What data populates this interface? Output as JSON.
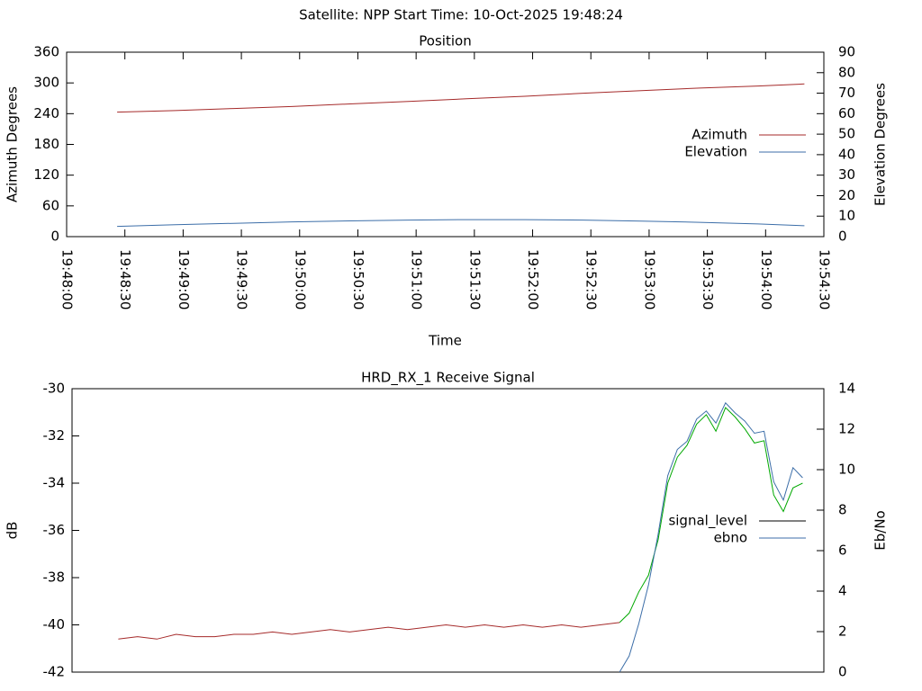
{
  "title": "Satellite: NPP    Start Time: 10-Oct-2025 19:48:24",
  "chart_data": [
    {
      "type": "line",
      "title": "Position",
      "xlabel": "Time",
      "ylabel": "Azimuth Degrees",
      "y2label": "Elevation Degrees",
      "xlim": [
        "19:48:00",
        "19:54:30"
      ],
      "xticks": [
        "19:48:00",
        "19:48:30",
        "19:49:00",
        "19:49:30",
        "19:50:00",
        "19:50:30",
        "19:51:00",
        "19:51:30",
        "19:52:00",
        "19:52:30",
        "19:53:00",
        "19:53:30",
        "19:54:00",
        "19:54:30"
      ],
      "ylim": [
        0,
        360
      ],
      "yticks": [
        0,
        60,
        120,
        180,
        240,
        300,
        360
      ],
      "y2lim": [
        0,
        90
      ],
      "y2ticks": [
        0,
        10,
        20,
        30,
        40,
        50,
        60,
        70,
        80,
        90
      ],
      "series": [
        {
          "name": "Azimuth",
          "color": "#a52a2a",
          "x": [
            "19:48:26",
            "19:48:56",
            "19:49:26",
            "19:49:56",
            "19:50:26",
            "19:50:56",
            "19:51:26",
            "19:51:56",
            "19:52:26",
            "19:52:56",
            "19:53:26",
            "19:53:56",
            "19:54:20"
          ],
          "values": [
            243,
            246,
            250,
            254,
            259,
            264,
            269,
            274,
            280,
            285,
            290,
            294,
            298
          ]
        },
        {
          "name": "Elevation",
          "color": "#3c6ea8",
          "axis": "y2",
          "x": [
            "19:48:26",
            "19:48:56",
            "19:49:26",
            "19:49:56",
            "19:50:26",
            "19:50:56",
            "19:51:26",
            "19:51:56",
            "19:52:26",
            "19:52:56",
            "19:53:26",
            "19:53:56",
            "19:54:20"
          ],
          "values": [
            5,
            5.8,
            6.5,
            7.2,
            7.7,
            8.1,
            8.3,
            8.3,
            8.1,
            7.6,
            7.0,
            6.2,
            5.3
          ]
        }
      ]
    },
    {
      "type": "line",
      "title": "HRD_RX_1 Receive Signal",
      "ylabel": "dB",
      "y2label": "Eb/No",
      "xlim": [
        "19:48:00",
        "19:54:30"
      ],
      "ylim": [
        -42,
        -30
      ],
      "yticks": [
        -42,
        -40,
        -38,
        -36,
        -34,
        -32,
        -30
      ],
      "y2lim": [
        0,
        14
      ],
      "y2ticks": [
        0,
        2,
        4,
        6,
        8,
        10,
        12,
        14
      ],
      "series": [
        {
          "name": "signal_level",
          "color": "#a52a2a",
          "legend_color": "#000000",
          "color_from": {
            "x": "19:52:44",
            "color": "#00a800"
          },
          "x": [
            "19:48:24",
            "19:48:34",
            "19:48:44",
            "19:48:54",
            "19:49:04",
            "19:49:14",
            "19:49:24",
            "19:49:34",
            "19:49:44",
            "19:49:54",
            "19:50:04",
            "19:50:14",
            "19:50:24",
            "19:50:34",
            "19:50:44",
            "19:50:54",
            "19:51:04",
            "19:51:14",
            "19:51:24",
            "19:51:34",
            "19:51:44",
            "19:51:54",
            "19:52:04",
            "19:52:14",
            "19:52:24",
            "19:52:34",
            "19:52:44",
            "19:52:49",
            "19:52:54",
            "19:52:59",
            "19:53:04",
            "19:53:09",
            "19:53:14",
            "19:53:19",
            "19:53:24",
            "19:53:29",
            "19:53:34",
            "19:53:39",
            "19:53:44",
            "19:53:49",
            "19:53:54",
            "19:53:59",
            "19:54:04",
            "19:54:09",
            "19:54:14",
            "19:54:19"
          ],
          "values": [
            -40.6,
            -40.5,
            -40.6,
            -40.4,
            -40.5,
            -40.5,
            -40.4,
            -40.4,
            -40.3,
            -40.4,
            -40.3,
            -40.2,
            -40.3,
            -40.2,
            -40.1,
            -40.2,
            -40.1,
            -40.0,
            -40.1,
            -40.0,
            -40.1,
            -40.0,
            -40.1,
            -40.0,
            -40.1,
            -40.0,
            -39.9,
            -39.5,
            -38.6,
            -37.9,
            -36.4,
            -34.0,
            -32.9,
            -32.4,
            -31.5,
            -31.1,
            -31.8,
            -30.8,
            -31.2,
            -31.7,
            -32.3,
            -32.2,
            -34.5,
            -35.2,
            -34.2,
            -34.0
          ]
        },
        {
          "name": "ebno",
          "color": "#3c6ea8",
          "axis": "y2",
          "x": [
            "19:52:44",
            "19:52:49",
            "19:52:54",
            "19:52:59",
            "19:53:04",
            "19:53:09",
            "19:53:14",
            "19:53:19",
            "19:53:24",
            "19:53:29",
            "19:53:34",
            "19:53:39",
            "19:53:44",
            "19:53:49",
            "19:53:54",
            "19:53:59",
            "19:54:04",
            "19:54:09",
            "19:54:14",
            "19:54:19"
          ],
          "values": [
            0.0,
            0.8,
            2.4,
            4.3,
            6.8,
            9.7,
            11.0,
            11.4,
            12.5,
            12.9,
            12.3,
            13.3,
            12.8,
            12.4,
            11.8,
            11.9,
            9.4,
            8.5,
            10.1,
            9.6
          ]
        }
      ]
    }
  ]
}
